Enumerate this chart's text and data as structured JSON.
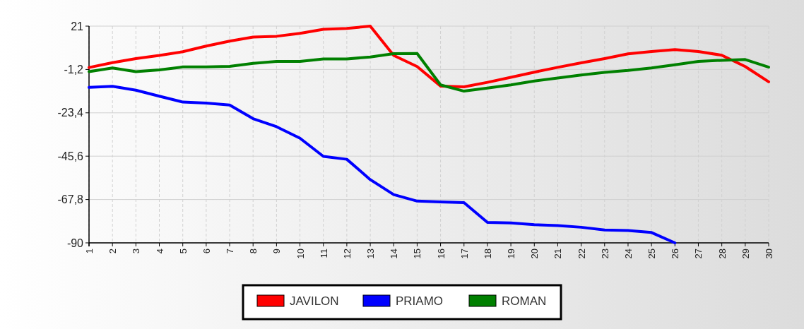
{
  "chart_data": {
    "type": "line",
    "categories": [
      "1",
      "2",
      "3",
      "4",
      "5",
      "6",
      "7",
      "8",
      "9",
      "10",
      "11",
      "12",
      "13",
      "14",
      "15",
      "16",
      "17",
      "18",
      "19",
      "20",
      "21",
      "22",
      "23",
      "24",
      "25",
      "26",
      "27",
      "28",
      "29",
      "30"
    ],
    "series": [
      {
        "name": "JAVILON",
        "color": "#ff0000",
        "values": [
          -0.2,
          2.3,
          4.4,
          6.0,
          7.9,
          10.8,
          13.3,
          15.4,
          15.8,
          17.3,
          19.4,
          19.8,
          21,
          6.0,
          0.3,
          -9.7,
          -10.1,
          -7.8,
          -5.2,
          -2.6,
          -0.1,
          2.2,
          4.4,
          6.8,
          8.0,
          9.0,
          8.0,
          6.1,
          0.3,
          -7.5
        ]
      },
      {
        "name": "PRIAMO",
        "color": "#0000ff",
        "values": [
          -10.4,
          -9.8,
          -11.8,
          -14.9,
          -17.9,
          -18.4,
          -19.4,
          -26.4,
          -30.5,
          -36.4,
          -45.7,
          -47.2,
          -57.6,
          -65.3,
          -68.6,
          -69.0,
          -69.4,
          -79.5,
          -79.8,
          -80.7,
          -81.1,
          -82.0,
          -83.4,
          -83.7,
          -84.7,
          -90,
          null,
          null,
          null,
          null
        ]
      },
      {
        "name": "ROMAN",
        "color": "#008000",
        "values": [
          -2.3,
          -0.4,
          -2.3,
          -1.4,
          0.1,
          0.1,
          0.4,
          1.9,
          2.9,
          2.9,
          4.2,
          4.2,
          5.2,
          6.9,
          7.0,
          -9.1,
          -12.3,
          -10.7,
          -9.1,
          -7.1,
          -5.6,
          -4.0,
          -2.7,
          -1.7,
          -0.4,
          1.2,
          2.9,
          3.5,
          3.9,
          0.0
        ]
      }
    ],
    "ylim": [
      -90,
      21
    ],
    "yticks": [
      21,
      {
        "value": -1.2,
        "label": "-1,2"
      },
      {
        "value": -23.4,
        "label": "-23,4"
      },
      {
        "value": -45.6,
        "label": "-45,6"
      },
      {
        "value": -67.8,
        "label": "-67,8"
      },
      -90
    ],
    "grid": true,
    "legend": "bottom",
    "marker": "none",
    "line_style": "solid"
  }
}
